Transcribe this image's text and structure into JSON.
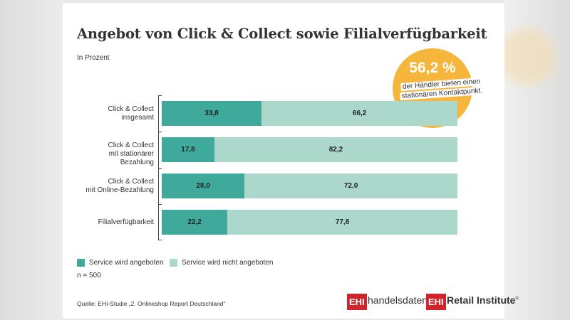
{
  "title": "Angebot von Click & Collect sowie Filialverfügbarkeit",
  "unit": "In Prozent",
  "callout": {
    "value": "56,2 %",
    "line1": "der Händler bieten einen",
    "line2": "stationären Kontaktpunkt."
  },
  "chart_data": {
    "type": "bar",
    "orientation": "horizontal",
    "stacked": true,
    "categories": [
      "Click & Collect\ninsgesamt",
      "Click & Collect\nmit stationärer Bezahlung",
      "Click & Collect\nmit Online-Bezahlung",
      "Filialverfügbarkeit"
    ],
    "series": [
      {
        "name": "Service wird angeboten",
        "values": [
          33.8,
          17.8,
          28.0,
          22.2
        ],
        "labels": [
          "33,8",
          "17,8",
          "28,0",
          "22,2"
        ],
        "color": "#3faa9c"
      },
      {
        "name": "Service wird nicht angeboten",
        "values": [
          66.2,
          82.2,
          72.0,
          77.8
        ],
        "labels": [
          "66,2",
          "82,2",
          "72,0",
          "77,8"
        ],
        "color": "#abd8cb"
      }
    ],
    "xlim": [
      0,
      100
    ],
    "grid": false,
    "legend_position": "bottom-left"
  },
  "legend": {
    "offered": "Service wird angeboten",
    "not_offered": "Service wird nicht angeboten"
  },
  "sample_note": "n = 500",
  "source": "Quelle: EHI-Studie „2. Onlineshop Report Deutschland“",
  "logos": {
    "mark": "EHI",
    "handelsdaten": "handelsdaten.de",
    "institute_bold": "Retail Institute",
    "registered": "®"
  }
}
